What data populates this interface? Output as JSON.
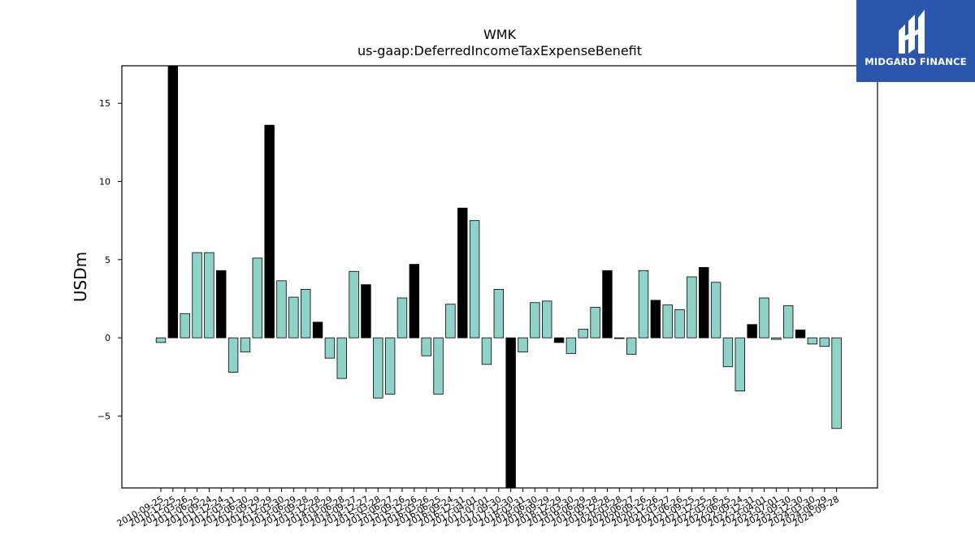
{
  "chart_data": {
    "type": "bar",
    "title": "WMK",
    "subtitle": "us-gaap:DeferredIncomeTaxExpenseBenefit",
    "ylabel": "USDm",
    "xlabel": "",
    "ylim": [
      -9.6,
      17.4
    ],
    "yticks": [
      -5,
      0,
      5,
      10,
      15
    ],
    "grid": false,
    "legend": "none",
    "colors": {
      "quarterly": "#8dd3c7",
      "annual": "#000000",
      "edge": "#000000"
    },
    "categories": [
      "2010-09-25",
      "2010-12-25",
      "2011-03-26",
      "2011-06-25",
      "2011-09-24",
      "2011-12-24",
      "2012-03-31",
      "2012-06-30",
      "2012-09-29",
      "2012-12-29",
      "2013-03-30",
      "2013-06-29",
      "2013-09-28",
      "2013-12-28",
      "2014-03-29",
      "2014-06-28",
      "2014-09-27",
      "2014-12-27",
      "2015-03-28",
      "2015-06-27",
      "2015-09-26",
      "2015-12-26",
      "2016-03-26",
      "2016-06-25",
      "2016-09-24",
      "2016-12-31",
      "2017-04-01",
      "2017-07-01",
      "2017-09-30",
      "2017-12-30",
      "2018-03-31",
      "2018-06-30",
      "2018-09-29",
      "2018-12-29",
      "2019-03-30",
      "2019-06-29",
      "2019-09-28",
      "2019-12-28",
      "2020-03-28",
      "2020-06-27",
      "2020-09-26",
      "2020-12-26",
      "2021-03-27",
      "2021-06-26",
      "2021-09-25",
      "2021-12-25",
      "2022-03-26",
      "2022-06-25",
      "2022-09-24",
      "2022-12-31",
      "2023-04-01",
      "2023-07-01",
      "2023-09-30",
      "2023-12-30",
      "2024-03-30",
      "2024-06-29",
      "2024-09-28"
    ],
    "values": [
      -0.3,
      17.4,
      1.55,
      5.45,
      5.45,
      4.3,
      -2.2,
      -0.9,
      5.1,
      13.6,
      3.65,
      2.6,
      3.1,
      1.0,
      -1.3,
      -2.6,
      4.25,
      3.4,
      -3.85,
      -3.6,
      2.55,
      4.7,
      -1.15,
      -3.6,
      2.15,
      8.3,
      7.5,
      -1.7,
      3.1,
      -9.6,
      -0.9,
      2.25,
      2.35,
      -0.3,
      -1.0,
      0.55,
      1.95,
      4.3,
      -0.05,
      -1.05,
      4.3,
      2.4,
      2.1,
      1.8,
      3.9,
      4.5,
      3.55,
      -1.85,
      -3.4,
      0.85,
      2.55,
      -0.1,
      2.05,
      0.5,
      -0.4,
      -0.55,
      -5.8
    ],
    "annual": [
      false,
      true,
      false,
      false,
      false,
      true,
      false,
      false,
      false,
      true,
      false,
      false,
      false,
      true,
      false,
      false,
      false,
      true,
      false,
      false,
      false,
      true,
      false,
      false,
      false,
      true,
      false,
      false,
      false,
      true,
      false,
      false,
      false,
      true,
      false,
      false,
      false,
      true,
      false,
      false,
      false,
      true,
      false,
      false,
      false,
      true,
      false,
      false,
      false,
      true,
      false,
      false,
      false,
      true,
      false,
      false,
      false
    ]
  },
  "brand": {
    "name": "MIDGARD FINANCE",
    "color": "#2a57ad"
  }
}
